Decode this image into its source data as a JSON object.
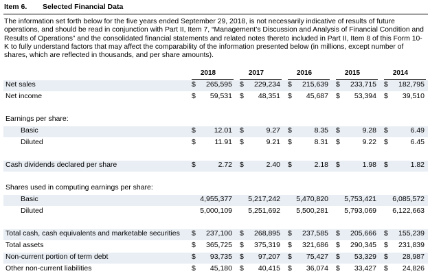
{
  "header": {
    "item": "Item 6.",
    "title": "Selected Financial Data"
  },
  "intro": "The information set forth below for the five years ended September 29, 2018, is not necessarily indicative of results of future operations, and should be read in conjunction with Part II, Item 7, “Management’s Discussion and Analysis of Financial Condition and Results of Operations” and the consolidated financial statements and related notes thereto included in Part II, Item 8 of this Form 10-K to fully understand factors that may affect the comparability of the information presented below (in millions, except number of shares, which are reflected in thousands, and per share amounts).",
  "table": {
    "columns": [
      "2018",
      "2017",
      "2016",
      "2015",
      "2014"
    ],
    "sections": [
      {
        "rows": [
          {
            "label": "Net sales",
            "cells": [
              {
                "currency": "$",
                "value": "265,595"
              },
              {
                "currency": "$",
                "value": "229,234"
              },
              {
                "currency": "$",
                "value": "215,639"
              },
              {
                "currency": "$",
                "value": "233,715"
              },
              {
                "currency": "$",
                "value": "182,795"
              }
            ]
          },
          {
            "label": "Net income",
            "cells": [
              {
                "currency": "$",
                "value": "59,531"
              },
              {
                "currency": "$",
                "value": "48,351"
              },
              {
                "currency": "$",
                "value": "45,687"
              },
              {
                "currency": "$",
                "value": "53,394"
              },
              {
                "currency": "$",
                "value": "39,510"
              }
            ]
          }
        ]
      },
      {
        "title": "Earnings per share:",
        "rows": [
          {
            "label": "Basic",
            "cells": [
              {
                "currency": "$",
                "value": "12.01"
              },
              {
                "currency": "$",
                "value": "9.27"
              },
              {
                "currency": "$",
                "value": "8.35"
              },
              {
                "currency": "$",
                "value": "9.28"
              },
              {
                "currency": "$",
                "value": "6.49"
              }
            ]
          },
          {
            "label": "Diluted",
            "cells": [
              {
                "currency": "$",
                "value": "11.91"
              },
              {
                "currency": "$",
                "value": "9.21"
              },
              {
                "currency": "$",
                "value": "8.31"
              },
              {
                "currency": "$",
                "value": "9.22"
              },
              {
                "currency": "$",
                "value": "6.45"
              }
            ]
          }
        ]
      },
      {
        "rows": [
          {
            "label": "Cash dividends declared per share",
            "cells": [
              {
                "currency": "$",
                "value": "2.72"
              },
              {
                "currency": "$",
                "value": "2.40"
              },
              {
                "currency": "$",
                "value": "2.18"
              },
              {
                "currency": "$",
                "value": "1.98"
              },
              {
                "currency": "$",
                "value": "1.82"
              }
            ]
          }
        ]
      },
      {
        "title": "Shares used in computing earnings per share:",
        "rows": [
          {
            "label": "Basic",
            "cells": [
              {
                "value": "4,955,377"
              },
              {
                "value": "5,217,242"
              },
              {
                "value": "5,470,820"
              },
              {
                "value": "5,753,421"
              },
              {
                "value": "6,085,572"
              }
            ]
          },
          {
            "label": "Diluted",
            "cells": [
              {
                "value": "5,000,109"
              },
              {
                "value": "5,251,692"
              },
              {
                "value": "5,500,281"
              },
              {
                "value": "5,793,069"
              },
              {
                "value": "6,122,663"
              }
            ]
          }
        ]
      },
      {
        "rows": [
          {
            "label": "Total cash, cash equivalents and marketable securities",
            "cells": [
              {
                "currency": "$",
                "value": "237,100"
              },
              {
                "currency": "$",
                "value": "268,895"
              },
              {
                "currency": "$",
                "value": "237,585"
              },
              {
                "currency": "$",
                "value": "205,666"
              },
              {
                "currency": "$",
                "value": "155,239"
              }
            ]
          },
          {
            "label": "Total assets",
            "cells": [
              {
                "currency": "$",
                "value": "365,725"
              },
              {
                "currency": "$",
                "value": "375,319"
              },
              {
                "currency": "$",
                "value": "321,686"
              },
              {
                "currency": "$",
                "value": "290,345"
              },
              {
                "currency": "$",
                "value": "231,839"
              }
            ]
          },
          {
            "label": "Non-current portion of term debt",
            "cells": [
              {
                "currency": "$",
                "value": "93,735"
              },
              {
                "currency": "$",
                "value": "97,207"
              },
              {
                "currency": "$",
                "value": "75,427"
              },
              {
                "currency": "$",
                "value": "53,329"
              },
              {
                "currency": "$",
                "value": "28,987"
              }
            ]
          },
          {
            "label": "Other non-current liabilities",
            "cells": [
              {
                "currency": "$",
                "value": "45,180"
              },
              {
                "currency": "$",
                "value": "40,415"
              },
              {
                "currency": "$",
                "value": "36,074"
              },
              {
                "currency": "$",
                "value": "33,427"
              },
              {
                "currency": "$",
                "value": "24,826"
              }
            ]
          }
        ]
      }
    ]
  }
}
